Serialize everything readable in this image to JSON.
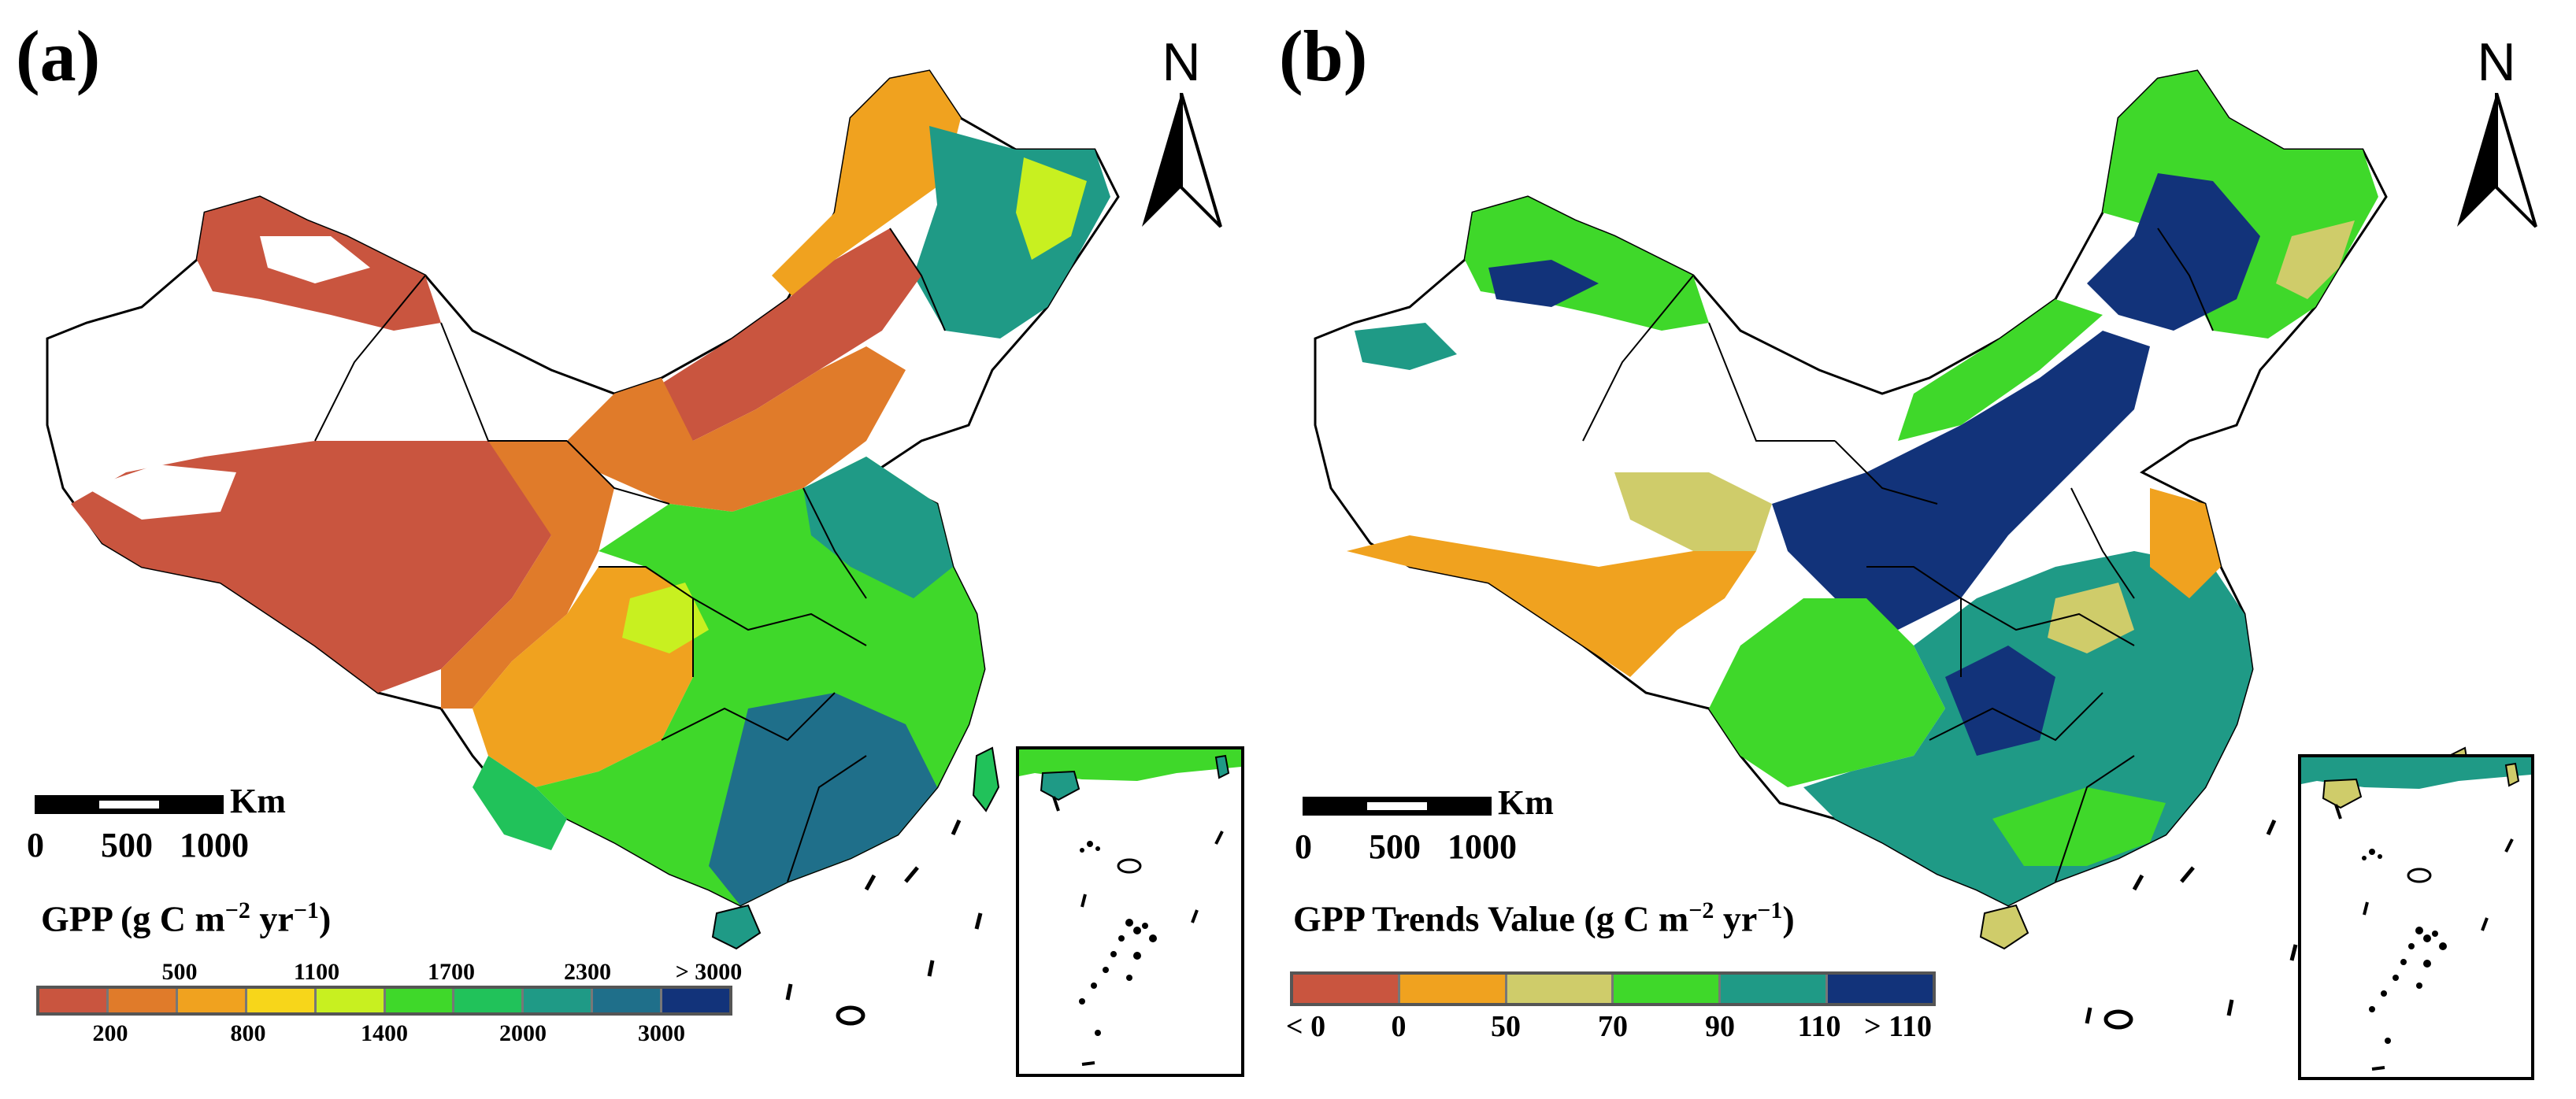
{
  "panels": {
    "a": {
      "label": "(a)",
      "north": "N",
      "scale": {
        "unit": "Km",
        "ticks": [
          "0",
          "500",
          "1000"
        ]
      },
      "legend": {
        "title_main": "GPP (g C m",
        "title_sup1": "−2",
        "title_mid": " yr",
        "title_sup2": "−1",
        "title_end": ")",
        "top_labels": [
          "500",
          "1100",
          "1700",
          "2300",
          "> 3000"
        ],
        "bottom_labels": [
          "200",
          "800",
          "1400",
          "2000",
          "3000"
        ],
        "colors": [
          "#c9553f",
          "#e07b2a",
          "#f0a21f",
          "#f7d61a",
          "#c8f020",
          "#3fd82a",
          "#21c25a",
          "#1f9a86",
          "#1f6f8a",
          "#12337a"
        ]
      }
    },
    "b": {
      "label": "(b)",
      "north": "N",
      "scale": {
        "unit": "Km",
        "ticks": [
          "0",
          "500",
          "1000"
        ]
      },
      "legend": {
        "title_main": "GPP Trends Value (g C m",
        "title_sup1": "−2",
        "title_mid": " yr",
        "title_sup2": "−1",
        "title_end": ")",
        "labels": [
          "< 0",
          "0",
          "50",
          "70",
          "90",
          "110",
          "> 110"
        ],
        "colors": [
          "#c9553f",
          "#f0a21f",
          "#cfcc6a",
          "#3fd82a",
          "#1f9a86",
          "#12337a"
        ]
      }
    }
  }
}
